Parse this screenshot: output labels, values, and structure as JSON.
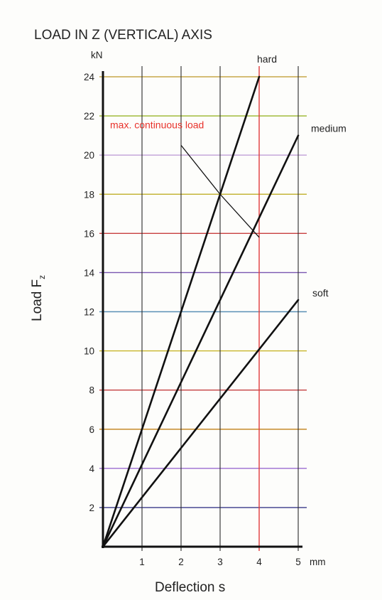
{
  "chart_data": {
    "type": "line",
    "title": "LOAD IN Z (VERTICAL) AXIS",
    "xlabel": "Deflection s",
    "ylabel": "Load F",
    "ylabel_sub": "z",
    "y_unit": "kN",
    "x_unit": "mm",
    "xlim": [
      0,
      5
    ],
    "ylim": [
      0,
      24
    ],
    "x_ticks": [
      "1",
      "2",
      "3",
      "4",
      "5"
    ],
    "y_ticks": [
      "2",
      "4",
      "6",
      "8",
      "10",
      "12",
      "14",
      "16",
      "18",
      "20",
      "22",
      "24"
    ],
    "grid": true,
    "series": [
      {
        "name": "hard",
        "x": [
          0,
          4
        ],
        "y": [
          0,
          24
        ]
      },
      {
        "name": "medium",
        "x": [
          0,
          5
        ],
        "y": [
          0,
          21
        ]
      },
      {
        "name": "soft",
        "x": [
          0,
          5
        ],
        "y": [
          0,
          12.6
        ]
      }
    ],
    "annotations": [
      {
        "text": "max. continuous load",
        "line": {
          "x": [
            3.0,
            2.0
          ],
          "y": [
            18,
            20.5
          ]
        },
        "color": "#e8322b"
      },
      {
        "line": {
          "x": [
            3.0,
            4.0
          ],
          "y": [
            18,
            15.8
          ]
        }
      },
      {
        "vline": 4,
        "color": "#e03a3a"
      }
    ],
    "gridline_colors": {
      "horizontal": [
        "#3a3a8a",
        "#9a6ad0",
        "#c58a2a",
        "#c34040",
        "#c7b52a",
        "#5a8fb5",
        "#7a55b0",
        "#c84040",
        "#c5b53a",
        "#c0a0d8",
        "#9ab52a",
        "#c8a84a"
      ],
      "vertical": "#2a2a2a",
      "max_load_line": "#e03a3a"
    }
  }
}
